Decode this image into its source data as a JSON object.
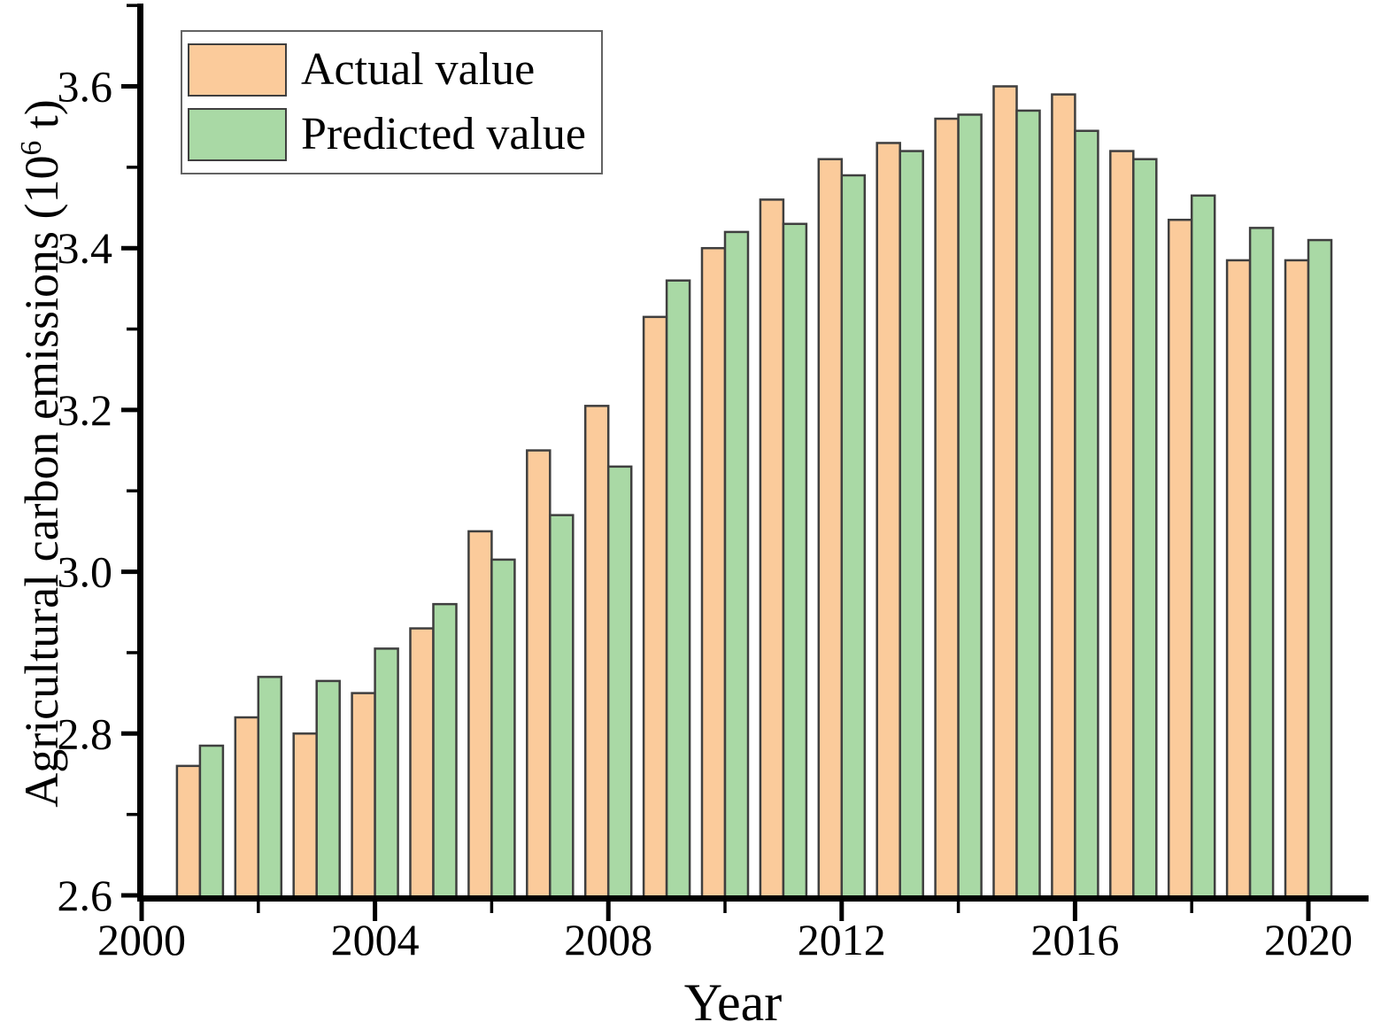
{
  "figure": {
    "x_axis_title": "Year",
    "y_axis_title_prefix": "Agricultural carbon emissions (10",
    "y_axis_title_sup": "6",
    "y_axis_title_suffix": " t)"
  },
  "legend": {
    "items": [
      {
        "label": "Actual value",
        "color": "#FBCB9B"
      },
      {
        "label": "Predicted value",
        "color": "#A9D9A5"
      }
    ]
  },
  "chart_data": {
    "type": "bar",
    "title": "",
    "xlabel": "Year",
    "ylabel": "Agricultural carbon emissions (10^6 t)",
    "categories": [
      2001,
      2002,
      2003,
      2004,
      2005,
      2006,
      2007,
      2008,
      2009,
      2010,
      2011,
      2012,
      2013,
      2014,
      2015,
      2016,
      2017,
      2018,
      2019,
      2020
    ],
    "series": [
      {
        "name": "Actual value",
        "color": "#FBCB9B",
        "values": [
          2.76,
          2.82,
          2.8,
          2.85,
          2.93,
          3.05,
          3.15,
          3.205,
          3.315,
          3.4,
          3.46,
          3.51,
          3.53,
          3.56,
          3.6,
          3.59,
          3.52,
          3.435,
          3.385,
          3.385
        ]
      },
      {
        "name": "Predicted value",
        "color": "#A9D9A5",
        "values": [
          2.785,
          2.87,
          2.865,
          2.905,
          2.96,
          3.015,
          3.07,
          3.13,
          3.36,
          3.42,
          3.43,
          3.49,
          3.52,
          3.565,
          3.57,
          3.545,
          3.51,
          3.465,
          3.425,
          3.41
        ]
      }
    ],
    "ylim": [
      2.6,
      3.7
    ],
    "xlim": [
      2000,
      2021
    ],
    "y_ticks_major": [
      2.6,
      2.8,
      3.0,
      3.2,
      3.4,
      3.6
    ],
    "y_tick_labels": [
      "2.6",
      "2.8",
      "3.0",
      "3.2",
      "3.4",
      "3.6"
    ],
    "y_ticks_minor": [
      2.7,
      2.9,
      3.1,
      3.3,
      3.5,
      3.7
    ],
    "x_ticks_major": [
      2000,
      2004,
      2008,
      2012,
      2016,
      2020
    ],
    "x_tick_labels": [
      "2000",
      "2004",
      "2008",
      "2012",
      "2016",
      "2020"
    ],
    "x_ticks_minor": [
      2002,
      2006,
      2010,
      2014,
      2018
    ],
    "grid": false,
    "legend_position": "top-left",
    "bar_border_color": "#3f3f3f",
    "axis_color": "#000000"
  }
}
